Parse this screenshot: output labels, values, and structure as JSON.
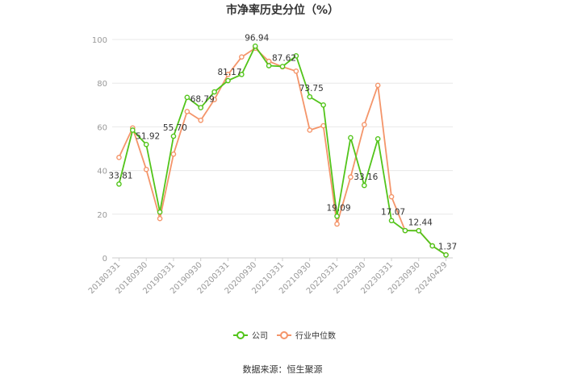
{
  "chart_data": {
    "type": "line",
    "title": "市净率历史分位（%）",
    "source": "数据来源：恒生聚源",
    "ylim": [
      0,
      100
    ],
    "yticks": [
      0,
      20,
      40,
      60,
      80,
      100
    ],
    "grid": true,
    "legend_position": "bottom",
    "x": [
      "20180331",
      "20180630",
      "20180930",
      "20181231",
      "20190331",
      "20190630",
      "20190930",
      "20191231",
      "20200331",
      "20200630",
      "20200930",
      "20201231",
      "20210331",
      "20210630",
      "20210930",
      "20211231",
      "20220331",
      "20220630",
      "20220930",
      "20221231",
      "20230331",
      "20230630",
      "20230930",
      "20231231",
      "20240429"
    ],
    "x_tick_labels": [
      "20180331",
      "20180930",
      "20190331",
      "20190930",
      "20200331",
      "20200930",
      "20210331",
      "20210930",
      "20220331",
      "20220930",
      "20230331",
      "20230930",
      "20240429"
    ],
    "series": [
      {
        "name": "公司",
        "color": "#52c41a",
        "values": [
          33.81,
          58.5,
          51.92,
          21.0,
          55.7,
          73.5,
          68.79,
          76.0,
          81.17,
          84.0,
          96.94,
          88.0,
          87.62,
          92.5,
          73.75,
          70.0,
          19.09,
          55.0,
          33.16,
          54.5,
          17.07,
          12.5,
          12.44,
          5.5,
          1.37
        ],
        "labels": {
          "0": "33.81",
          "2": "51.92",
          "4": "55.70",
          "6": "68.79",
          "8": "81.17",
          "10": "96.94",
          "12": "87.62",
          "14": "73.75",
          "16": "19.09",
          "18": "33.16",
          "20": "17.07",
          "22": "12.44",
          "24": "1.37"
        }
      },
      {
        "name": "行业中位数",
        "color": "#f4956a",
        "values": [
          46.0,
          59.5,
          40.5,
          18.0,
          47.5,
          67.0,
          63.0,
          72.5,
          84.0,
          92.0,
          96.0,
          90.0,
          87.5,
          85.5,
          58.5,
          60.5,
          15.5,
          37.0,
          61.0,
          79.0,
          28.0,
          12.5,
          12.5,
          5.5,
          1.4
        ]
      }
    ]
  }
}
